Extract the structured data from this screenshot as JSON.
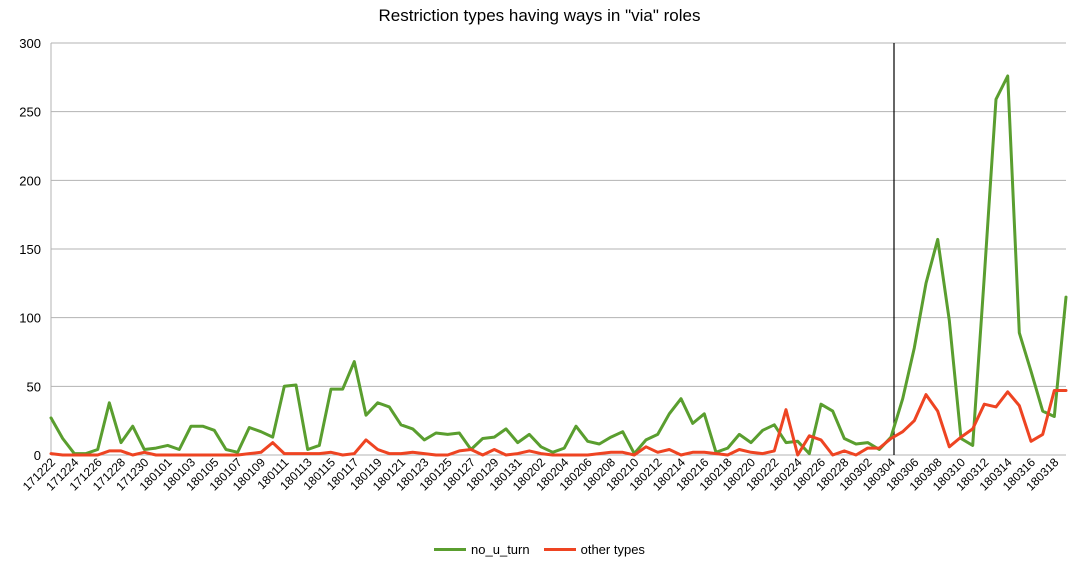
{
  "chart_data": {
    "type": "line",
    "title": "Restriction types having ways in \"via\" roles",
    "xlabel": "",
    "ylabel": "",
    "ylim": [
      0,
      300
    ],
    "yticks": [
      0,
      50,
      100,
      150,
      200,
      250,
      300
    ],
    "grid": true,
    "legend_position": "bottom",
    "marker_line_at": "180304",
    "x": [
      "171222",
      "171223",
      "171224",
      "171225",
      "171226",
      "171227",
      "171228",
      "171229",
      "171230",
      "171231",
      "180101",
      "180102",
      "180103",
      "180104",
      "180105",
      "180106",
      "180107",
      "180108",
      "180109",
      "180110",
      "180111",
      "180112",
      "180113",
      "180114",
      "180115",
      "180116",
      "180117",
      "180118",
      "180119",
      "180120",
      "180121",
      "180122",
      "180123",
      "180124",
      "180125",
      "180126",
      "180127",
      "180128",
      "180129",
      "180130",
      "180131",
      "180201",
      "180202",
      "180203",
      "180204",
      "180205",
      "180206",
      "180207",
      "180208",
      "180209",
      "180210",
      "180211",
      "180212",
      "180213",
      "180214",
      "180215",
      "180216",
      "180217",
      "180218",
      "180219",
      "180220",
      "180221",
      "180222",
      "180223",
      "180224",
      "180225",
      "180226",
      "180227",
      "180228",
      "180301",
      "180302",
      "180303",
      "180304",
      "180305",
      "180306",
      "180307",
      "180308",
      "180309",
      "180310",
      "180311",
      "180312",
      "180313",
      "180314",
      "180315",
      "180316",
      "180317",
      "180318",
      "180319"
    ],
    "x_tick_labels": [
      "171222",
      "171224",
      "171226",
      "171228",
      "171230",
      "180101",
      "180103",
      "180105",
      "180107",
      "180109",
      "180111",
      "180113",
      "180115",
      "180117",
      "180119",
      "180121",
      "180123",
      "180125",
      "180127",
      "180129",
      "180131",
      "180202",
      "180204",
      "180206",
      "180208",
      "180210",
      "180212",
      "180214",
      "180216",
      "180218",
      "180220",
      "180222",
      "180224",
      "180226",
      "180228",
      "180302",
      "180304",
      "180306",
      "180308",
      "180310",
      "180312",
      "180314",
      "180316",
      "180318"
    ],
    "series": [
      {
        "name": "no_u_turn",
        "color": "#5a9e2f",
        "values": [
          27,
          12,
          1,
          1,
          4,
          38,
          9,
          21,
          4,
          5,
          7,
          4,
          21,
          21,
          18,
          4,
          2,
          20,
          17,
          13,
          50,
          51,
          4,
          7,
          48,
          48,
          68,
          29,
          38,
          35,
          22,
          19,
          11,
          16,
          15,
          16,
          4,
          12,
          13,
          19,
          9,
          15,
          6,
          2,
          5,
          21,
          10,
          8,
          13,
          17,
          1,
          11,
          15,
          30,
          41,
          23,
          30,
          2,
          5,
          15,
          9,
          18,
          22,
          9,
          10,
          1,
          37,
          32,
          12,
          8,
          9,
          4,
          13,
          41,
          78,
          125,
          157,
          98,
          12,
          7,
          130,
          259,
          276,
          89,
          61,
          32,
          28,
          115
        ]
      },
      {
        "name": "other types",
        "color": "#ee4422",
        "values": [
          1,
          0,
          0,
          0,
          0,
          3,
          3,
          0,
          2,
          0,
          0,
          0,
          0,
          0,
          0,
          0,
          0,
          1,
          2,
          9,
          1,
          1,
          1,
          1,
          2,
          0,
          1,
          11,
          4,
          1,
          1,
          2,
          1,
          0,
          0,
          3,
          4,
          0,
          4,
          0,
          1,
          3,
          1,
          0,
          0,
          0,
          0,
          1,
          2,
          2,
          0,
          6,
          2,
          4,
          0,
          2,
          2,
          1,
          0,
          4,
          2,
          1,
          3,
          33,
          0,
          14,
          11,
          0,
          3,
          0,
          5,
          5,
          12,
          17,
          25,
          44,
          32,
          6,
          13,
          19,
          37,
          35,
          46,
          36,
          10,
          15,
          47,
          47
        ]
      }
    ]
  }
}
